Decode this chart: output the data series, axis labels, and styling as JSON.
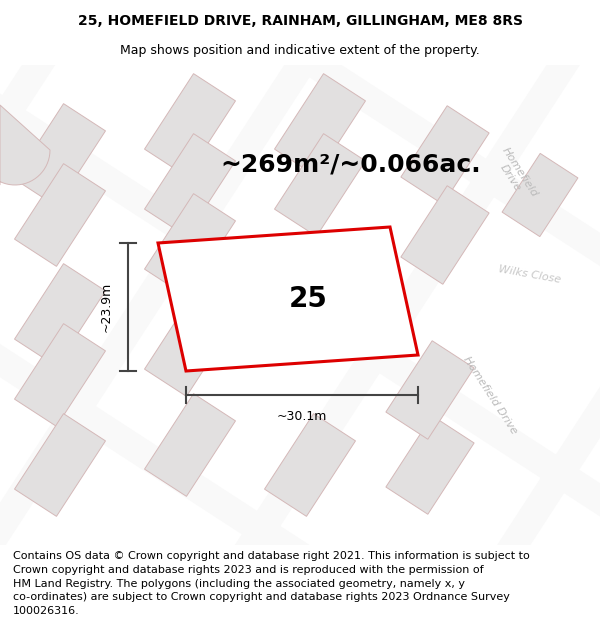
{
  "title": "25, HOMEFIELD DRIVE, RAINHAM, GILLINGHAM, ME8 8RS",
  "subtitle": "Map shows position and indicative extent of the property.",
  "area_text": "~269m²/~0.066ac.",
  "number_label": "25",
  "width_label": "~30.1m",
  "height_label": "~23.9m",
  "footer_line1": "Contains OS data © Crown copyright and database right 2021. This information is subject to",
  "footer_line2": "Crown copyright and database rights 2023 and is reproduced with the permission of",
  "footer_line3": "HM Land Registry. The polygons (including the associated geometry, namely x, y",
  "footer_line4": "co-ordinates) are subject to Crown copyright and database rights 2023 Ordnance Survey",
  "footer_line5": "100026316.",
  "map_bg": "#ebebeb",
  "road_color": "#f9f9f9",
  "road_edge_color": "#e8e0e0",
  "plot_border_color": "#dd0000",
  "building_fill": "#e2e0e0",
  "building_stroke": "#d4b8b8",
  "road_label_color": "#bbbbbb",
  "dim_line_color": "#444444",
  "title_fontsize": 10,
  "subtitle_fontsize": 9,
  "area_fontsize": 18,
  "number_fontsize": 20,
  "footer_fontsize": 8.0,
  "road1_label": "Homefield Drive",
  "road2_label": "Wilks Close"
}
